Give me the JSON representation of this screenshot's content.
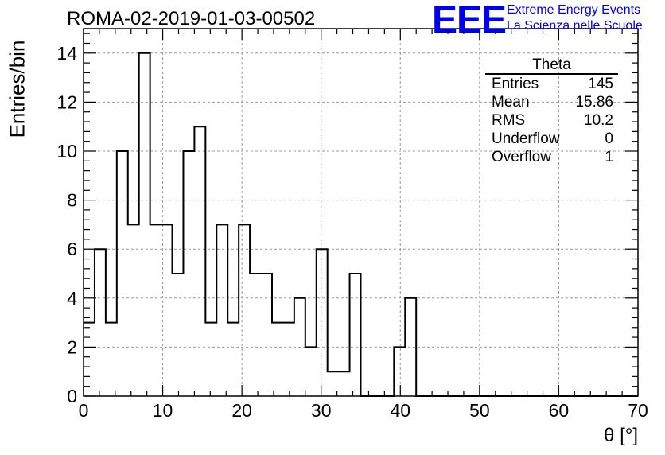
{
  "title": "ROMA-02-2019-01-03-00502",
  "logo": {
    "mark": "EEE",
    "line1": "Extreme Energy Events",
    "line2": "La Scienza nelle Scuole",
    "color": "#0000ee"
  },
  "stats_box": {
    "title": "Theta",
    "rows": [
      {
        "label": "Entries",
        "value": "145"
      },
      {
        "label": "Mean",
        "value": "15.86"
      },
      {
        "label": "RMS",
        "value": "10.2"
      },
      {
        "label": "Underflow",
        "value": "0"
      },
      {
        "label": "Overflow",
        "value": "1"
      }
    ]
  },
  "chart_data": {
    "type": "bar",
    "histogram": true,
    "title": "ROMA-02-2019-01-03-00502",
    "xlabel": "θ [°]",
    "ylabel": "Entries/bin",
    "xlim": [
      0,
      70
    ],
    "ylim": [
      0,
      15
    ],
    "bin_width": 1.4,
    "xticks": [
      0,
      10,
      20,
      30,
      40,
      50,
      60,
      70
    ],
    "yticks": [
      0,
      2,
      4,
      6,
      8,
      10,
      12,
      14
    ],
    "grid": true,
    "values": [
      3,
      6,
      3,
      10,
      7,
      14,
      7,
      7,
      5,
      10,
      11,
      3,
      7,
      3,
      7,
      5,
      5,
      3,
      3,
      4,
      2,
      6,
      1,
      1,
      5,
      0,
      0,
      0,
      2,
      4,
      0,
      0,
      0,
      0,
      0,
      0,
      0,
      0,
      0,
      0,
      0,
      0,
      0,
      0,
      0,
      0,
      0,
      0,
      0,
      0
    ]
  }
}
